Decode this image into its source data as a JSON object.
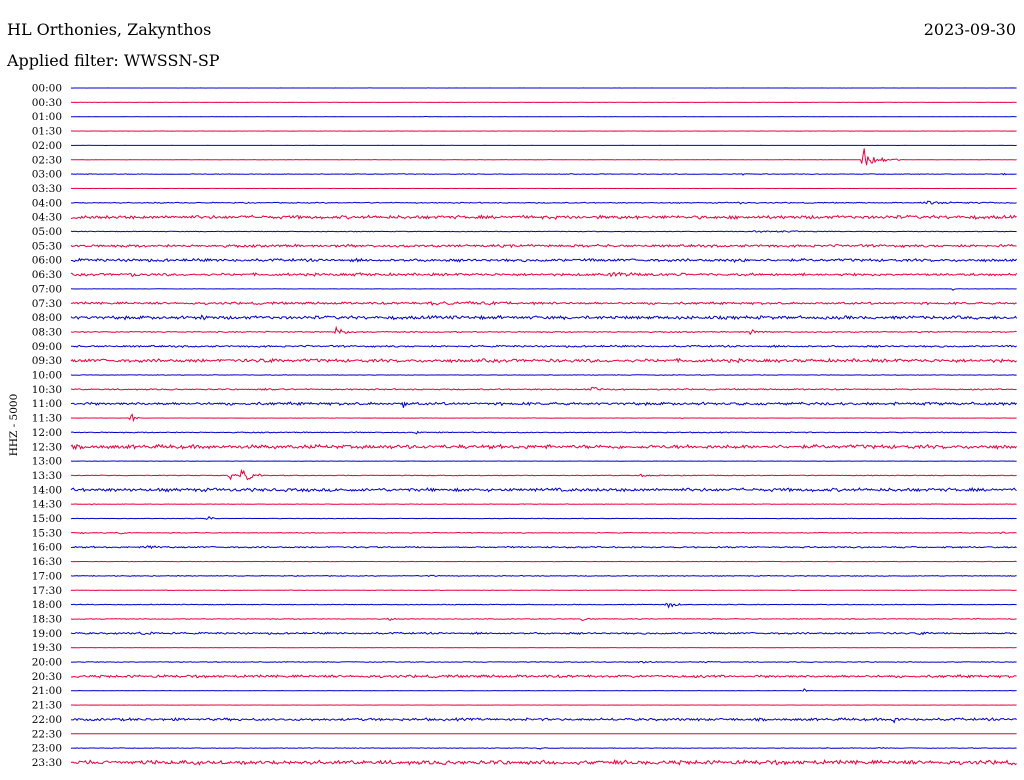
{
  "header": {
    "station": "HL Orthonies, Zakynthos",
    "filter": "Applied filter: WWSSN-SP",
    "date": "2023-09-30"
  },
  "chart_data": {
    "type": "line",
    "title": "HL Orthonies, Zakynthos",
    "subtitle": "Applied filter: WWSSN-SP",
    "date": "2023-09-30",
    "ylabel": "HHZ - 5000",
    "row_interval_minutes": 30,
    "colors": [
      "#0000cc",
      "#e8003c"
    ],
    "rows": [
      {
        "time": "00:00",
        "noise": 0.05,
        "events": []
      },
      {
        "time": "00:30",
        "noise": 0.05,
        "events": []
      },
      {
        "time": "01:00",
        "noise": 0.08,
        "events": [
          {
            "t": 0.375,
            "amp": 1.0,
            "dur": 0.008
          }
        ]
      },
      {
        "time": "01:30",
        "noise": 0.08,
        "events": [
          {
            "t": 0.51,
            "amp": 1.0,
            "dur": 0.005
          }
        ]
      },
      {
        "time": "02:00",
        "noise": 0.05,
        "events": []
      },
      {
        "time": "02:30",
        "noise": 0.15,
        "events": [
          {
            "t": 0.562,
            "amp": 1.0,
            "dur": 0.004
          },
          {
            "t": 0.836,
            "amp": 14.0,
            "dur": 0.04
          }
        ]
      },
      {
        "time": "03:00",
        "noise": 0.25,
        "events": [
          {
            "t": 0.71,
            "amp": 1.5,
            "dur": 0.01
          },
          {
            "t": 0.986,
            "amp": 1.5,
            "dur": 0.005
          }
        ]
      },
      {
        "time": "03:30",
        "noise": 0.05,
        "events": []
      },
      {
        "time": "04:00",
        "noise": 0.4,
        "events": [
          {
            "t": 0.088,
            "amp": 1.2,
            "dur": 0.012
          },
          {
            "t": 0.705,
            "amp": 1.8,
            "dur": 0.012
          },
          {
            "t": 0.9,
            "amp": 1.6,
            "dur": 0.1
          }
        ]
      },
      {
        "time": "04:30",
        "noise": 1.3,
        "events": []
      },
      {
        "time": "05:00",
        "noise": 0.25,
        "events": [
          {
            "t": 0.72,
            "amp": 1.0,
            "dur": 0.15
          }
        ]
      },
      {
        "time": "05:30",
        "noise": 1.0,
        "events": []
      },
      {
        "time": "06:00",
        "noise": 1.1,
        "events": [
          {
            "t": 0.7,
            "amp": 2.0,
            "dur": 0.02
          }
        ]
      },
      {
        "time": "06:30",
        "noise": 1.0,
        "events": [
          {
            "t": 0.06,
            "amp": 2.2,
            "dur": 0.02
          },
          {
            "t": 0.3,
            "amp": 1.8,
            "dur": 0.03
          },
          {
            "t": 0.57,
            "amp": 1.6,
            "dur": 0.09
          }
        ]
      },
      {
        "time": "07:00",
        "noise": 0.1,
        "events": [
          {
            "t": 0.932,
            "amp": 2.0,
            "dur": 0.004
          }
        ]
      },
      {
        "time": "07:30",
        "noise": 0.9,
        "events": [
          {
            "t": 0.38,
            "amp": 1.4,
            "dur": 0.15
          }
        ]
      },
      {
        "time": "08:00",
        "noise": 1.3,
        "events": [
          {
            "t": 0.138,
            "amp": 3.0,
            "dur": 0.015
          }
        ]
      },
      {
        "time": "08:30",
        "noise": 0.45,
        "events": [
          {
            "t": 0.28,
            "amp": 6.0,
            "dur": 0.02
          },
          {
            "t": 0.717,
            "amp": 5.0,
            "dur": 0.015
          }
        ]
      },
      {
        "time": "09:00",
        "noise": 0.7,
        "events": []
      },
      {
        "time": "09:30",
        "noise": 1.3,
        "events": [
          {
            "t": 0.2,
            "amp": 2.0,
            "dur": 0.03
          }
        ]
      },
      {
        "time": "10:00",
        "noise": 0.2,
        "events": [
          {
            "t": 0.01,
            "amp": 1.5,
            "dur": 0.005
          }
        ]
      },
      {
        "time": "10:30",
        "noise": 0.5,
        "events": [
          {
            "t": 0.2,
            "amp": 1.8,
            "dur": 0.02
          },
          {
            "t": 0.55,
            "amp": 2.0,
            "dur": 0.04
          }
        ]
      },
      {
        "time": "11:00",
        "noise": 1.1,
        "events": [
          {
            "t": 0.351,
            "amp": 7.0,
            "dur": 0.006
          }
        ]
      },
      {
        "time": "11:30",
        "noise": 0.1,
        "events": [
          {
            "t": 0.064,
            "amp": 7.0,
            "dur": 0.012
          },
          {
            "t": 0.645,
            "amp": 1.5,
            "dur": 0.004
          }
        ]
      },
      {
        "time": "12:00",
        "noise": 0.4,
        "events": [
          {
            "t": 0.365,
            "amp": 2.0,
            "dur": 0.012
          }
        ]
      },
      {
        "time": "12:30",
        "noise": 1.5,
        "events": []
      },
      {
        "time": "13:00",
        "noise": 0.1,
        "events": []
      },
      {
        "time": "13:30",
        "noise": 0.3,
        "events": [
          {
            "t": 0.168,
            "amp": 6.0,
            "dur": 0.01
          },
          {
            "t": 0.18,
            "amp": 11.0,
            "dur": 0.025
          },
          {
            "t": 0.6,
            "amp": 1.5,
            "dur": 0.04
          }
        ]
      },
      {
        "time": "14:00",
        "noise": 1.3,
        "events": []
      },
      {
        "time": "14:30",
        "noise": 0.2,
        "events": [
          {
            "t": 0.02,
            "amp": 1.5,
            "dur": 0.005
          }
        ]
      },
      {
        "time": "15:00",
        "noise": 0.2,
        "events": [
          {
            "t": 0.145,
            "amp": 4.0,
            "dur": 0.01
          }
        ]
      },
      {
        "time": "15:30",
        "noise": 0.3,
        "events": [
          {
            "t": 0.012,
            "amp": 1.8,
            "dur": 0.005
          },
          {
            "t": 0.052,
            "amp": 2.5,
            "dur": 0.008
          },
          {
            "t": 0.985,
            "amp": 1.5,
            "dur": 0.004
          }
        ]
      },
      {
        "time": "16:00",
        "noise": 0.6,
        "events": [
          {
            "t": 0.08,
            "amp": 1.5,
            "dur": 0.03
          }
        ]
      },
      {
        "time": "16:30",
        "noise": 0.15,
        "events": [
          {
            "t": 0.85,
            "amp": 1.5,
            "dur": 0.004
          }
        ]
      },
      {
        "time": "17:00",
        "noise": 0.3,
        "events": [
          {
            "t": 0.38,
            "amp": 1.6,
            "dur": 0.012
          }
        ]
      },
      {
        "time": "17:30",
        "noise": 0.2,
        "events": [
          {
            "t": 0.16,
            "amp": 1.5,
            "dur": 0.005
          }
        ]
      },
      {
        "time": "18:00",
        "noise": 0.3,
        "events": [
          {
            "t": 0.628,
            "amp": 8.0,
            "dur": 0.02
          }
        ]
      },
      {
        "time": "18:30",
        "noise": 0.3,
        "events": [
          {
            "t": 0.335,
            "amp": 2.5,
            "dur": 0.012
          },
          {
            "t": 0.54,
            "amp": 1.8,
            "dur": 0.02
          },
          {
            "t": 0.958,
            "amp": 1.5,
            "dur": 0.004
          }
        ]
      },
      {
        "time": "19:00",
        "noise": 0.7,
        "events": [
          {
            "t": 0.07,
            "amp": 1.8,
            "dur": 0.03
          },
          {
            "t": 0.895,
            "amp": 1.6,
            "dur": 0.02
          }
        ]
      },
      {
        "time": "19:30",
        "noise": 0.05,
        "events": []
      },
      {
        "time": "20:00",
        "noise": 0.3,
        "events": [
          {
            "t": 0.6,
            "amp": 1.8,
            "dur": 0.02
          },
          {
            "t": 0.67,
            "amp": 1.8,
            "dur": 0.012
          }
        ]
      },
      {
        "time": "20:30",
        "noise": 1.0,
        "events": []
      },
      {
        "time": "21:00",
        "noise": 0.15,
        "events": [
          {
            "t": 0.775,
            "amp": 1.8,
            "dur": 0.012
          }
        ]
      },
      {
        "time": "21:30",
        "noise": 0.05,
        "events": []
      },
      {
        "time": "22:00",
        "noise": 1.0,
        "events": [
          {
            "t": 0.87,
            "amp": 5.5,
            "dur": 0.005
          }
        ]
      },
      {
        "time": "22:30",
        "noise": 0.05,
        "events": []
      },
      {
        "time": "23:00",
        "noise": 0.25,
        "events": [
          {
            "t": 0.495,
            "amp": 2.0,
            "dur": 0.008
          },
          {
            "t": 0.855,
            "amp": 1.8,
            "dur": 0.008
          }
        ]
      },
      {
        "time": "23:30",
        "noise": 1.6,
        "events": []
      }
    ]
  }
}
